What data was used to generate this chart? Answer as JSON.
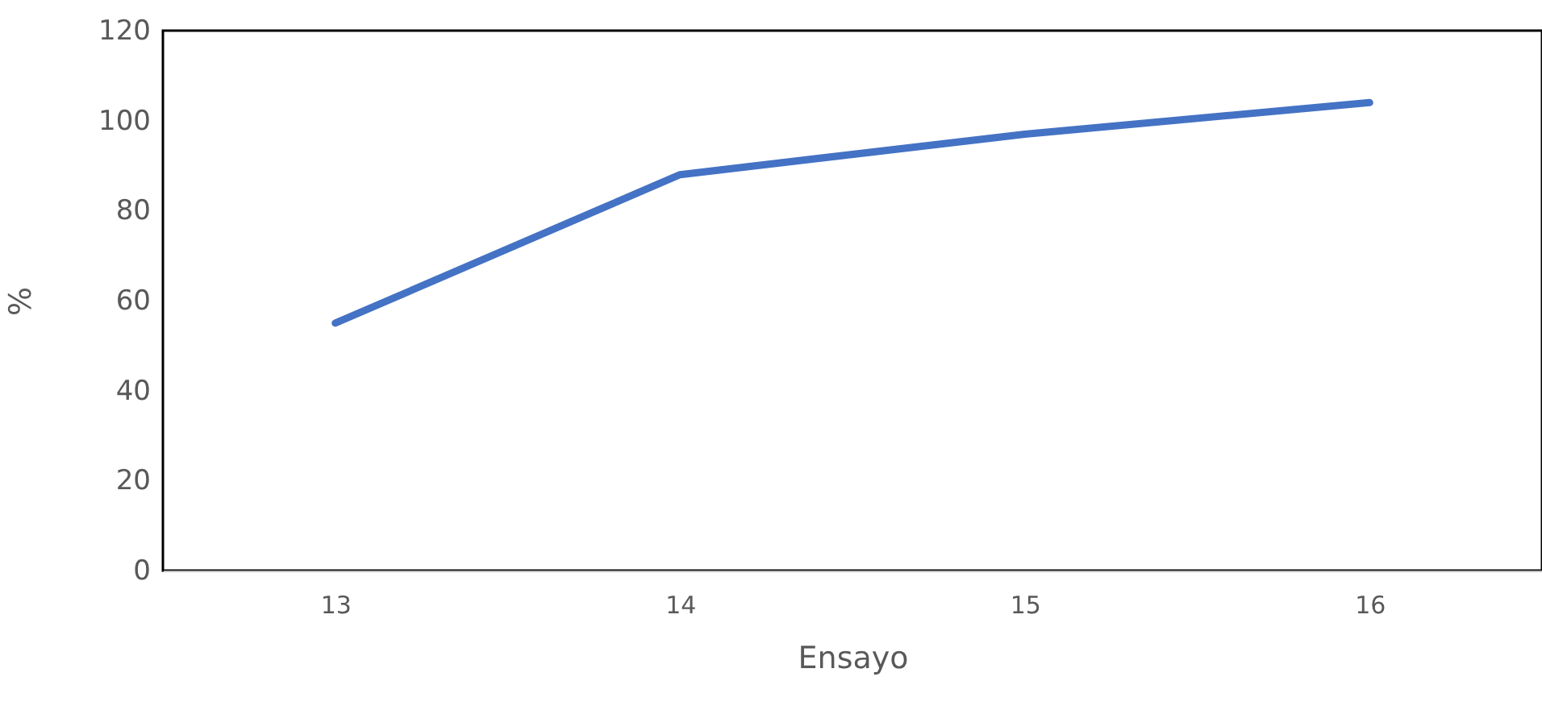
{
  "chart_data": {
    "type": "line",
    "xlabel": "Ensayo",
    "ylabel": "%",
    "categories": [
      "13",
      "14",
      "15",
      "16"
    ],
    "series": [
      {
        "color": "#4472c4",
        "values": [
          55,
          88,
          97,
          104
        ]
      }
    ],
    "ylim": [
      0,
      120
    ],
    "yticks": [
      0,
      20,
      40,
      60,
      80,
      100,
      120
    ],
    "grid": false,
    "marker": "none",
    "line_style": "solid"
  }
}
